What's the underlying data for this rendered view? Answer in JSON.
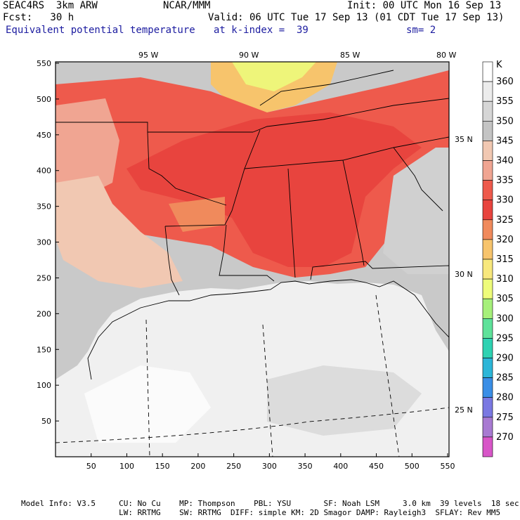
{
  "header": {
    "model": "SEAC4RS  3km ARW",
    "org": "NCAR/MMM",
    "init": "Init: 00 UTC Mon 16 Sep 13",
    "fcst": "Fcst:   30 h",
    "valid": "Valid: 06 UTC Tue 17 Sep 13 (01 CDT Tue 17 Sep 13)",
    "field": "Equivalent potential temperature",
    "level": "at k-index =  39",
    "smooth": "sm= 2"
  },
  "axes": {
    "x_ticks": [
      "50",
      "100",
      "150",
      "200",
      "250",
      "300",
      "350",
      "400",
      "450",
      "500",
      "550"
    ],
    "y_ticks": [
      "50",
      "100",
      "150",
      "200",
      "250",
      "300",
      "350",
      "400",
      "450",
      "500",
      "550"
    ],
    "lon_labels": [
      "95 W",
      "90 W",
      "85 W",
      "80 W"
    ],
    "lat_labels": [
      "35 N",
      "30 N",
      "25 N"
    ]
  },
  "colorbar": {
    "unit": "K",
    "levels": [
      {
        "label": "360",
        "color": "#ffffff"
      },
      {
        "label": "355",
        "color": "#ececec"
      },
      {
        "label": "350",
        "color": "#d6d6d6"
      },
      {
        "label": "345",
        "color": "#c4c4c4"
      },
      {
        "label": "340",
        "color": "#f1c8b2"
      },
      {
        "label": "335",
        "color": "#f0a592"
      },
      {
        "label": "330",
        "color": "#ee5a4c"
      },
      {
        "label": "325",
        "color": "#e8443e"
      },
      {
        "label": "320",
        "color": "#f08a5c"
      },
      {
        "label": "315",
        "color": "#f7c46c"
      },
      {
        "label": "310",
        "color": "#f8e87c"
      },
      {
        "label": "305",
        "color": "#eefc7a"
      },
      {
        "label": "300",
        "color": "#a6f07a"
      },
      {
        "label": "295",
        "color": "#5ee29a"
      },
      {
        "label": "290",
        "color": "#2ed2b2"
      },
      {
        "label": "285",
        "color": "#2cb6d8"
      },
      {
        "label": "280",
        "color": "#3a8ee6"
      },
      {
        "label": "275",
        "color": "#7a78e2"
      },
      {
        "label": "270",
        "color": "#a87ad2"
      },
      {
        "label": "",
        "color": "#d856c8"
      }
    ]
  },
  "footer": {
    "line1": "Model Info: V3.5     CU: No Cu    MP: Thompson    PBL: YSU       SF: Noah LSM     3.0 km  39 levels  18 sec",
    "line2": "                     LW: RRTMG    SW: RRTMG  DIFF: simple KM: 2D Smagor DAMP: Rayleigh3  SFLAY: Rev MM5"
  }
}
